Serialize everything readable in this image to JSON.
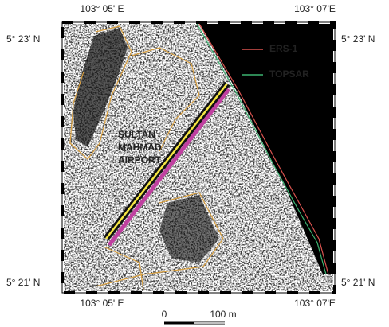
{
  "map": {
    "coordinates": {
      "top": [
        "103° 05' E",
        "103° 07'E"
      ],
      "bottom": [
        "103° 05' E",
        "103° 07'E"
      ],
      "left": [
        "5° 23' N",
        "5° 21' N"
      ],
      "right": [
        "5° 23' N",
        "5° 21' N"
      ]
    },
    "legend": [
      {
        "name": "ERS-1",
        "color": "#d9534f"
      },
      {
        "name": "TOPSAR",
        "color": "#3cb371"
      }
    ],
    "annotation": [
      "SULTAN",
      "MAHMAD",
      "AIRPORT"
    ],
    "scale_bar": {
      "start": "0",
      "end": "100 m"
    }
  }
}
